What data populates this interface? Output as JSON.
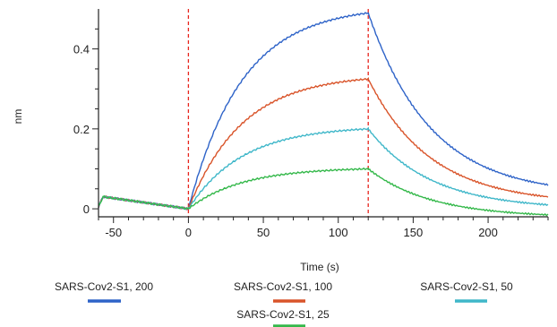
{
  "chart_data": {
    "type": "line",
    "title": "",
    "xlabel": "Time (s)",
    "ylabel": "nm",
    "xlim": [
      -60,
      240
    ],
    "ylim": [
      -0.02,
      0.5
    ],
    "x_ticks": [
      -50,
      0,
      50,
      100,
      150,
      200
    ],
    "y_ticks": [
      0,
      0.2,
      0.4
    ],
    "x_tick_labels": [
      "-50",
      "0",
      "50",
      "100",
      "150",
      "200"
    ],
    "y_tick_labels": [
      "0",
      "0.2",
      "0.4"
    ],
    "grid": false,
    "legend_position": "bottom",
    "reference_lines": [
      {
        "x": 0,
        "color": "#e8261e",
        "style": "dashed"
      },
      {
        "x": 120,
        "color": "#e8261e",
        "style": "dashed"
      }
    ],
    "baseline": {
      "x_start": -60,
      "x_end": 0,
      "start_value": 0.03,
      "end_value": 0.0
    },
    "association": {
      "x_start": 0,
      "x_end": 120
    },
    "dissociation": {
      "x_start": 120,
      "x_end": 240
    },
    "series": [
      {
        "name": "SARS-Cov2-S1, 200",
        "color": "#2e63c8",
        "plateau": 0.49,
        "end_value": 0.06
      },
      {
        "name": "SARS-Cov2-S1, 100",
        "color": "#d9542a",
        "plateau": 0.325,
        "end_value": 0.03
      },
      {
        "name": "SARS-Cov2-S1, 50",
        "color": "#3fb7c9",
        "plateau": 0.2,
        "end_value": 0.01
      },
      {
        "name": "SARS-Cov2-S1, 25",
        "color": "#34b84a",
        "plateau": 0.1,
        "end_value": -0.015
      }
    ]
  }
}
